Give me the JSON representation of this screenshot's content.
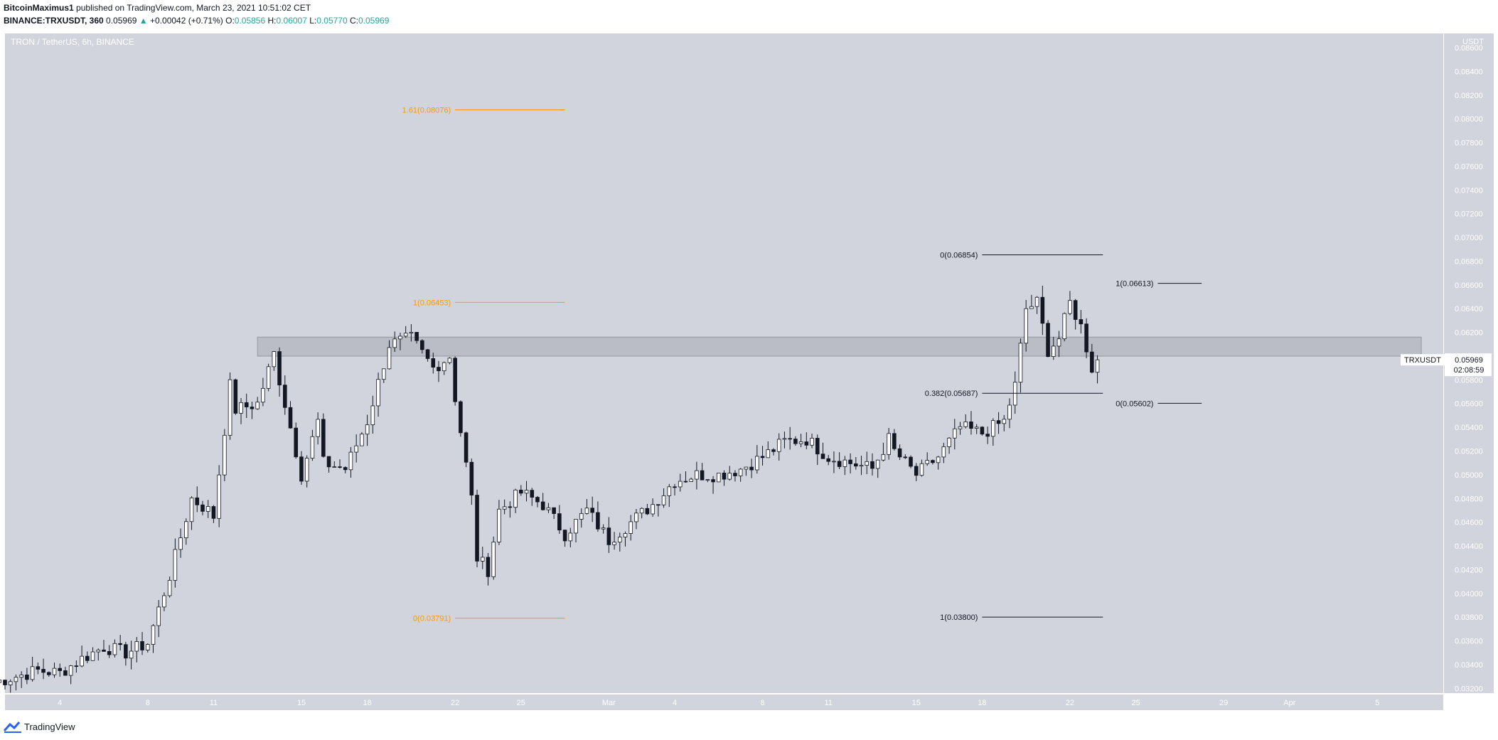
{
  "header": {
    "author": "BitcoinMaximus1",
    "published": "published on TradingView.com, March 23, 2021 10:51:02 CET",
    "symbol": "BINANCE:TRXUSDT, 360",
    "last": "0.05969",
    "arrow": "▲",
    "change": "+0.00042 (+0.71%)",
    "o_label": "O:",
    "o_value": "0.05856",
    "h_label": "H:",
    "h_value": "0.06007",
    "l_label": "L:",
    "l_value": "0.05770",
    "c_label": "C:",
    "c_value": "0.05969"
  },
  "footer": {
    "brand": "TradingView"
  },
  "colors": {
    "background": "#d1d4dc",
    "candle_up_fill": "#ffffff",
    "candle_down_fill": "#131722",
    "wick": "#131722",
    "fib_orange": "#ff9800",
    "fib_black": "#131722",
    "zone": "#b2b5be"
  },
  "chart_data": {
    "type": "candlestick",
    "title": "TRON / TetherUS, 6h, BINANCE",
    "currency_label": "USDT",
    "ylim": [
      0.0316,
      0.0872
    ],
    "y_ticks": [
      "0.03200",
      "0.03400",
      "0.03600",
      "0.03800",
      "0.04000",
      "0.04200",
      "0.04400",
      "0.04600",
      "0.04800",
      "0.05000",
      "0.05200",
      "0.05400",
      "0.05600",
      "0.05800",
      "0.06000",
      "0.06200",
      "0.06400",
      "0.06600",
      "0.06800",
      "0.07000",
      "0.07200",
      "0.07400",
      "0.07600",
      "0.07800",
      "0.08000",
      "0.08200",
      "0.08400",
      "0.08600"
    ],
    "x_range_days": [
      "2021-02-01T12:00",
      "2021-04-08T00:00"
    ],
    "x_ticks": [
      {
        "label": "4",
        "date": "2021-02-04"
      },
      {
        "label": "8",
        "date": "2021-02-08"
      },
      {
        "label": "11",
        "date": "2021-02-11"
      },
      {
        "label": "15",
        "date": "2021-02-15"
      },
      {
        "label": "18",
        "date": "2021-02-18"
      },
      {
        "label": "22",
        "date": "2021-02-22"
      },
      {
        "label": "25",
        "date": "2021-02-25"
      },
      {
        "label": "Mar",
        "date": "2021-03-01"
      },
      {
        "label": "4",
        "date": "2021-03-04"
      },
      {
        "label": "8",
        "date": "2021-03-08"
      },
      {
        "label": "11",
        "date": "2021-03-11"
      },
      {
        "label": "15",
        "date": "2021-03-15"
      },
      {
        "label": "18",
        "date": "2021-03-18"
      },
      {
        "label": "22",
        "date": "2021-03-22"
      },
      {
        "label": "25",
        "date": "2021-03-25"
      },
      {
        "label": "29",
        "date": "2021-03-29"
      },
      {
        "label": "Apr",
        "date": "2021-04-01"
      },
      {
        "label": "5",
        "date": "2021-04-05"
      }
    ],
    "key_points": [
      {
        "date": "2021-02-01",
        "price": 0.0325
      },
      {
        "date": "2021-02-03",
        "price": 0.0335
      },
      {
        "date": "2021-02-04",
        "price": 0.0333
      },
      {
        "date": "2021-02-05",
        "price": 0.0345
      },
      {
        "date": "2021-02-06",
        "price": 0.0355
      },
      {
        "date": "2021-02-07",
        "price": 0.035
      },
      {
        "date": "2021-02-08",
        "price": 0.0358
      },
      {
        "date": "2021-02-09",
        "price": 0.0415
      },
      {
        "date": "2021-02-10",
        "price": 0.048
      },
      {
        "date": "2021-02-10T18:00",
        "price": 0.047
      },
      {
        "date": "2021-02-11",
        "price": 0.0465
      },
      {
        "date": "2021-02-11T18:00",
        "price": 0.0575
      },
      {
        "date": "2021-02-12",
        "price": 0.0555
      },
      {
        "date": "2021-02-13",
        "price": 0.056
      },
      {
        "date": "2021-02-13T18:00",
        "price": 0.0602
      },
      {
        "date": "2021-02-14",
        "price": 0.058
      },
      {
        "date": "2021-02-15",
        "price": 0.05
      },
      {
        "date": "2021-02-15T18:00",
        "price": 0.0545
      },
      {
        "date": "2021-02-16",
        "price": 0.051
      },
      {
        "date": "2021-02-17",
        "price": 0.0505
      },
      {
        "date": "2021-02-18",
        "price": 0.0545
      },
      {
        "date": "2021-02-19",
        "price": 0.061
      },
      {
        "date": "2021-02-20",
        "price": 0.0615
      },
      {
        "date": "2021-02-21",
        "price": 0.059
      },
      {
        "date": "2021-02-21T18:00",
        "price": 0.06
      },
      {
        "date": "2021-02-22",
        "price": 0.0565
      },
      {
        "date": "2021-02-22T18:00",
        "price": 0.048
      },
      {
        "date": "2021-02-23",
        "price": 0.043
      },
      {
        "date": "2021-02-23T12:00",
        "price": 0.042
      },
      {
        "date": "2021-02-24",
        "price": 0.047
      },
      {
        "date": "2021-02-25",
        "price": 0.0485
      },
      {
        "date": "2021-02-26",
        "price": 0.0475
      },
      {
        "date": "2021-02-27",
        "price": 0.045
      },
      {
        "date": "2021-02-28",
        "price": 0.047
      },
      {
        "date": "2021-03-01",
        "price": 0.0445
      },
      {
        "date": "2021-03-02",
        "price": 0.046
      },
      {
        "date": "2021-03-03",
        "price": 0.0475
      },
      {
        "date": "2021-03-04",
        "price": 0.0495
      },
      {
        "date": "2021-03-05",
        "price": 0.05
      },
      {
        "date": "2021-03-06",
        "price": 0.05
      },
      {
        "date": "2021-03-07",
        "price": 0.0505
      },
      {
        "date": "2021-03-08",
        "price": 0.0515
      },
      {
        "date": "2021-03-09",
        "price": 0.0528
      },
      {
        "date": "2021-03-10",
        "price": 0.053
      },
      {
        "date": "2021-03-11",
        "price": 0.0515
      },
      {
        "date": "2021-03-12",
        "price": 0.051
      },
      {
        "date": "2021-03-13",
        "price": 0.0505
      },
      {
        "date": "2021-03-13T18:00",
        "price": 0.053
      },
      {
        "date": "2021-03-14",
        "price": 0.052
      },
      {
        "date": "2021-03-15",
        "price": 0.05
      },
      {
        "date": "2021-03-16",
        "price": 0.0515
      },
      {
        "date": "2021-03-17",
        "price": 0.054
      },
      {
        "date": "2021-03-18",
        "price": 0.0535
      },
      {
        "date": "2021-03-19",
        "price": 0.0545
      },
      {
        "date": "2021-03-19T12:00",
        "price": 0.0575
      },
      {
        "date": "2021-03-20",
        "price": 0.064
      },
      {
        "date": "2021-03-20T12:00",
        "price": 0.0645
      },
      {
        "date": "2021-03-21",
        "price": 0.0605
      },
      {
        "date": "2021-03-21T12:00",
        "price": 0.0615
      },
      {
        "date": "2021-03-22",
        "price": 0.0645
      },
      {
        "date": "2021-03-22T12:00",
        "price": 0.0625
      },
      {
        "date": "2021-03-23",
        "price": 0.059
      },
      {
        "date": "2021-03-23T06:00",
        "price": 0.05969
      }
    ],
    "resistance_zone": {
      "from_date": "2021-02-13",
      "to_date": "2021-04-07",
      "low": 0.06,
      "high": 0.0616
    },
    "fib_levels": [
      {
        "label": "1.61(0.08076)",
        "price": 0.08076,
        "from_date": "2021-02-22",
        "to_date": "2021-02-27",
        "color": "#ff9800"
      },
      {
        "label": "1(0.06453)",
        "price": 0.06453,
        "from_date": "2021-02-22",
        "to_date": "2021-02-27",
        "color": "#ff9800"
      },
      {
        "label": "0(0.03791)",
        "price": 0.03791,
        "from_date": "2021-02-22",
        "to_date": "2021-02-27",
        "color": "#ff9800"
      },
      {
        "label": "0(0.06854)",
        "price": 0.06854,
        "from_date": "2021-03-18",
        "to_date": "2021-03-23T12:00",
        "color": "#131722"
      },
      {
        "label": "0.382(0.05687)",
        "price": 0.05687,
        "from_date": "2021-03-18",
        "to_date": "2021-03-23T12:00",
        "color": "#131722"
      },
      {
        "label": "1(0.03800)",
        "price": 0.038,
        "from_date": "2021-03-18",
        "to_date": "2021-03-23T12:00",
        "color": "#131722"
      },
      {
        "label": "1(0.06613)",
        "price": 0.06613,
        "from_date": "2021-03-26",
        "to_date": "2021-03-28",
        "color": "#131722"
      },
      {
        "label": "0(0.05602)",
        "price": 0.05602,
        "from_date": "2021-03-26",
        "to_date": "2021-03-28",
        "color": "#131722"
      }
    ],
    "price_label": {
      "symbol": "TRXUSDT",
      "price": "0.05969",
      "countdown": "02:08:59"
    }
  }
}
